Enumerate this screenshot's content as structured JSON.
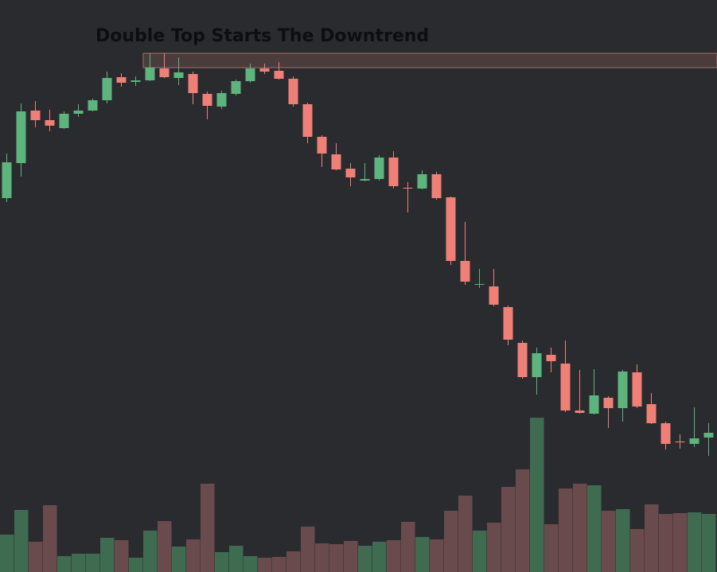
{
  "chart_data": {
    "type": "candlestick",
    "title": "Double Top Starts The Downtrend",
    "open": [
      470,
      514,
      580,
      568,
      558,
      576,
      580,
      593,
      622,
      616,
      618,
      633,
      621,
      626,
      601,
      585,
      601,
      617,
      633,
      630,
      620,
      588,
      547,
      525,
      507,
      492,
      494,
      521,
      483,
      482,
      500,
      471,
      391,
      361,
      359,
      333,
      288,
      245,
      273,
      262,
      203,
      199,
      219,
      206,
      251,
      211,
      187,
      164,
      161,
      169
    ],
    "high": [
      526,
      589,
      592,
      581,
      579,
      588,
      595,
      629,
      627,
      623,
      652,
      652,
      647,
      629,
      604,
      605,
      619,
      639,
      639,
      641,
      623,
      590,
      549,
      539,
      514,
      514,
      524,
      529,
      490,
      505,
      503,
      472,
      440,
      381,
      381,
      335,
      291,
      282,
      282,
      291,
      254,
      255,
      221,
      254,
      261,
      225,
      189,
      173,
      207,
      187
    ],
    "low": [
      465,
      497,
      559,
      554,
      557,
      572,
      579,
      589,
      610,
      611,
      617,
      621,
      612,
      588,
      569,
      582,
      599,
      615,
      626,
      619,
      585,
      539,
      509,
      505,
      485,
      491,
      492,
      482,
      452,
      481,
      468,
      386,
      361,
      357,
      334,
      285,
      243,
      223,
      251,
      201,
      199,
      198,
      181,
      189,
      206,
      186,
      154,
      155,
      157,
      146
    ],
    "close": [
      515,
      579,
      568,
      561,
      576,
      580,
      593,
      621,
      615,
      618,
      634,
      622,
      628,
      602,
      586,
      602,
      617,
      633,
      629,
      620,
      588,
      547,
      526,
      506,
      496,
      494,
      521,
      485,
      482,
      500,
      470,
      391,
      365,
      362,
      336,
      292,
      245,
      275,
      265,
      203,
      200,
      222,
      206,
      252,
      208,
      187,
      161,
      163,
      168,
      175
    ],
    "volume": [
      47,
      78,
      38,
      84,
      20,
      23,
      23,
      43,
      40,
      18,
      52,
      64,
      32,
      41,
      111,
      25,
      33,
      20,
      18,
      19,
      26,
      57,
      36,
      35,
      39,
      33,
      38,
      40,
      63,
      44,
      41,
      77,
      96,
      52,
      62,
      107,
      129,
      194,
      60,
      105,
      111,
      109,
      77,
      79,
      54,
      85,
      73,
      74,
      75,
      73
    ],
    "ylim": [
      0,
      719
    ],
    "volume_ylim": [
      0,
      200
    ],
    "up_color": "#5db47c",
    "down_color": "#ef8078",
    "volume_up_color": "#3f6b50",
    "volume_down_color": "#6a4b4d",
    "zone": {
      "high": 652,
      "low": 634,
      "color": "#4a3b3c",
      "edge_color": "#a2716c"
    }
  }
}
